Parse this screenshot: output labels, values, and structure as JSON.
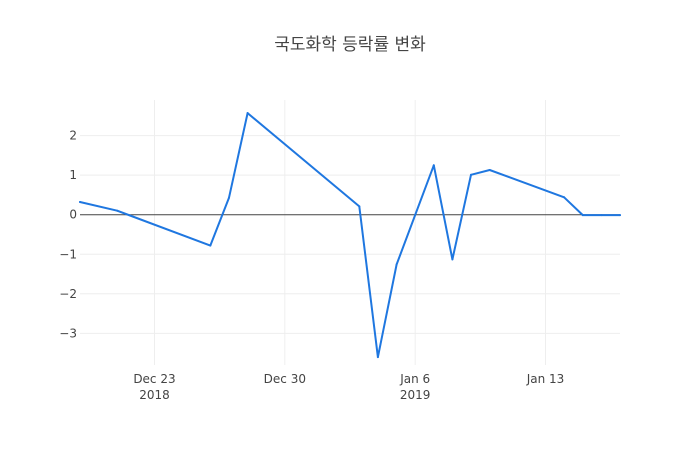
{
  "chart_data": {
    "type": "line",
    "title": "국도화학 등락률 변화",
    "xlabel": "",
    "ylabel": "",
    "x_axis_type": "date",
    "xlim": [
      "2018-12-19",
      "2019-01-17"
    ],
    "ylim": [
      -3.8,
      2.9
    ],
    "x_ticks": [
      {
        "date": "2018-12-23",
        "label": "Dec 23",
        "sublabel": "2018"
      },
      {
        "date": "2018-12-30",
        "label": "Dec 30",
        "sublabel": ""
      },
      {
        "date": "2019-01-06",
        "label": "Jan 6",
        "sublabel": "2019"
      },
      {
        "date": "2019-01-13",
        "label": "Jan 13",
        "sublabel": ""
      }
    ],
    "y_ticks": [
      {
        "value": 2,
        "label": "2"
      },
      {
        "value": 1,
        "label": "1"
      },
      {
        "value": 0,
        "label": "0"
      },
      {
        "value": -1,
        "label": "−1"
      },
      {
        "value": -2,
        "label": "−2"
      },
      {
        "value": -3,
        "label": "−3"
      }
    ],
    "grid": true,
    "zero_line": true,
    "series": [
      {
        "color": "#1f77e0",
        "x": [
          "2018-12-19",
          "2018-12-21",
          "2018-12-26",
          "2018-12-27",
          "2018-12-28",
          "2019-01-03",
          "2019-01-04",
          "2019-01-05",
          "2019-01-07",
          "2019-01-08",
          "2019-01-09",
          "2019-01-10",
          "2019-01-14",
          "2019-01-15",
          "2019-01-16",
          "2019-01-17"
        ],
        "y": [
          0.32,
          0.1,
          -0.78,
          0.43,
          2.57,
          0.21,
          -3.6,
          -1.26,
          1.25,
          -1.13,
          1.01,
          1.13,
          0.44,
          -0.01,
          -0.01,
          -0.01
        ]
      }
    ]
  }
}
